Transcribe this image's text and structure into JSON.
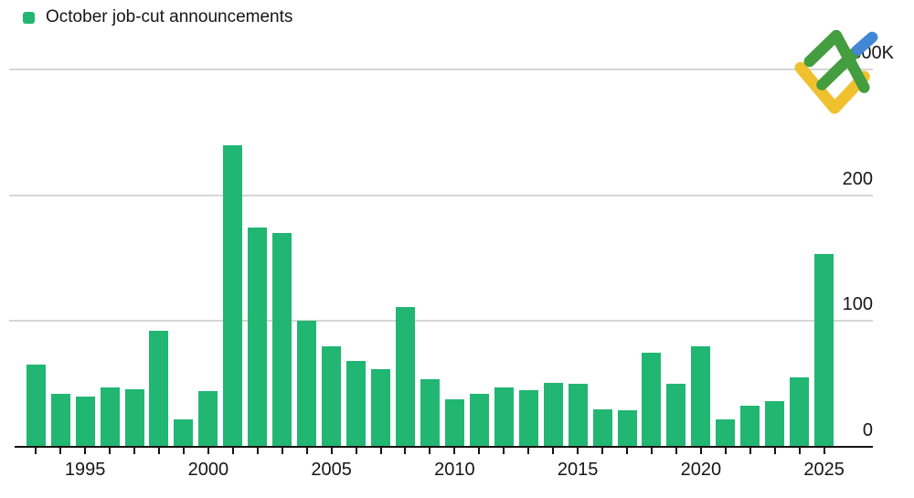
{
  "legend": {
    "label": "October job-cut announcements"
  },
  "chart_data": {
    "type": "bar",
    "title": "October job-cut announcements",
    "xlabel": "",
    "ylabel": "",
    "y_unit": "K (thousands of job cuts)",
    "ylim": [
      0,
      300
    ],
    "grid": "horizontal gridlines at 100, 200, 300; black baseline axis at 0",
    "legend_position": "top-left",
    "bar_color": "#22b673",
    "x": [
      1993,
      1994,
      1995,
      1996,
      1997,
      1998,
      1999,
      2000,
      2001,
      2002,
      2003,
      2004,
      2005,
      2006,
      2007,
      2008,
      2009,
      2010,
      2011,
      2012,
      2013,
      2014,
      2015,
      2016,
      2017,
      2018,
      2019,
      2020,
      2021,
      2022,
      2023,
      2024,
      2025
    ],
    "values": [
      65,
      42,
      40,
      47,
      46,
      92,
      22,
      44,
      240,
      174,
      170,
      100,
      80,
      68,
      62,
      111,
      54,
      38,
      42,
      47,
      45,
      51,
      50,
      30,
      29,
      75,
      50,
      80,
      22,
      33,
      36,
      55,
      153
    ],
    "yticks": [
      {
        "value": 0,
        "label": "0"
      },
      {
        "value": 100,
        "label": "100"
      },
      {
        "value": 200,
        "label": "200"
      },
      {
        "value": 300,
        "label": "300K"
      }
    ],
    "xtick_labeled_years": [
      1995,
      2000,
      2005,
      2010,
      2015,
      2020,
      2025
    ],
    "xticks_every_year": true
  },
  "colors": {
    "bar_green": "#22b673",
    "gridline_gray": "#d6d6d6",
    "axis_black": "#111111",
    "text_black": "#161616",
    "background": "#ffffff",
    "logo_green": "#449d3e",
    "logo_yellow": "#f0c12f",
    "logo_blue": "#4187d6"
  },
  "watermark": {
    "name": "broker-logo (green zigzag arrow with blue tip over yellow chevron)"
  }
}
